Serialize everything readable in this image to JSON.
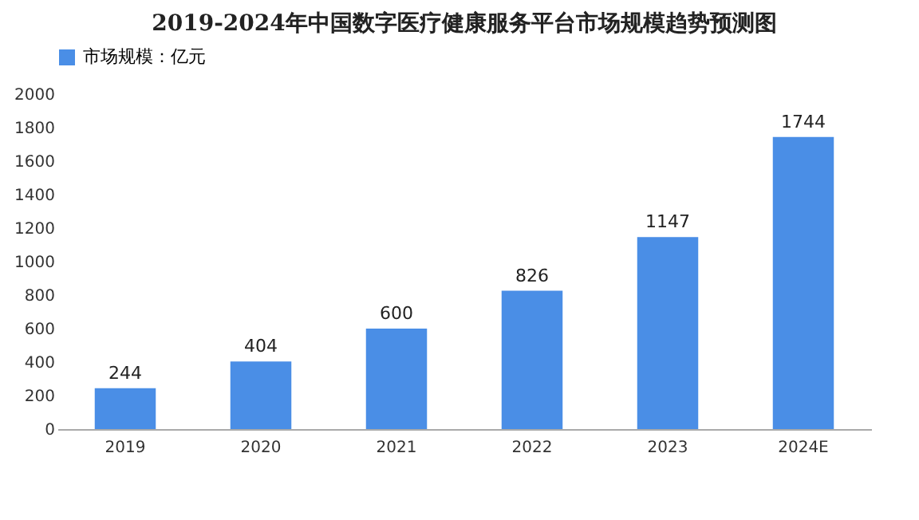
{
  "chart_data": {
    "type": "bar",
    "title": "2019-2024年中国数字医疗健康服务平台市场规模趋势预测图",
    "categories": [
      "2019",
      "2020",
      "2021",
      "2022",
      "2023",
      "2024E"
    ],
    "series": [
      {
        "name": "市场规模：亿元",
        "color": "#4a8ee6",
        "values": [
          244,
          404,
          600,
          826,
          1147,
          1744
        ]
      }
    ],
    "ylim": [
      0,
      2000
    ],
    "yticks": [
      0,
      200,
      400,
      600,
      800,
      1000,
      1200,
      1400,
      1600,
      1800,
      2000
    ],
    "grid": false,
    "legend": "top",
    "data_labels": true
  }
}
